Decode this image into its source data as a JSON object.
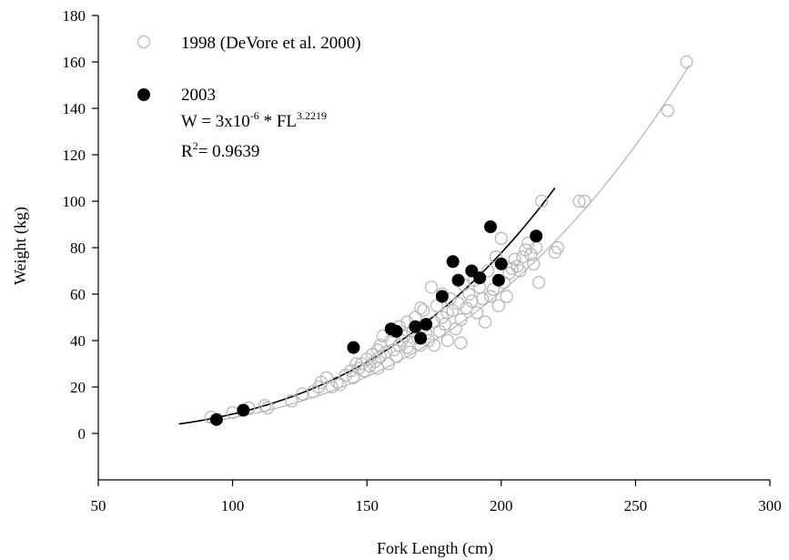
{
  "chart_data": {
    "type": "scatter",
    "xlabel": "Fork Length (cm)",
    "ylabel": "Weight (kg)",
    "xlim": [
      50,
      300
    ],
    "ylim": [
      -20,
      180
    ],
    "xticks": [
      50,
      100,
      150,
      200,
      250,
      300
    ],
    "yticks": [
      0,
      20,
      40,
      60,
      80,
      100,
      120,
      140,
      160,
      180
    ],
    "grid": false,
    "legend_position": "top-left",
    "series": [
      {
        "name": "1998 (DeVore et al. 2000)",
        "marker": "open-circle",
        "color": "#b8b8b8",
        "x": [
          92,
          100,
          106,
          112,
          113,
          122,
          126,
          130,
          132,
          133,
          135,
          137,
          139,
          140,
          142,
          144,
          145,
          146,
          147,
          148,
          149,
          150,
          151,
          152,
          153,
          154,
          154,
          155,
          155,
          156,
          157,
          158,
          159,
          160,
          160,
          161,
          162,
          162,
          163,
          164,
          165,
          165,
          166,
          167,
          168,
          169,
          170,
          170,
          171,
          171,
          172,
          173,
          174,
          175,
          175,
          176,
          177,
          178,
          178,
          179,
          180,
          180,
          181,
          182,
          183,
          184,
          185,
          185,
          186,
          187,
          188,
          189,
          190,
          191,
          192,
          193,
          194,
          195,
          196,
          197,
          198,
          199,
          200,
          201,
          202,
          203,
          204,
          205,
          206,
          207,
          208,
          209,
          210,
          211,
          212,
          213,
          214,
          215,
          220,
          221,
          229,
          231,
          262,
          269
        ],
        "y": [
          7,
          9,
          11,
          12,
          11,
          14,
          17,
          18,
          20,
          22,
          24,
          20,
          22,
          21,
          25,
          27,
          24,
          30,
          28,
          30,
          27,
          32,
          29,
          34,
          31,
          36,
          28,
          38,
          33,
          42,
          35,
          30,
          40,
          36,
          44,
          33,
          46,
          38,
          40,
          42,
          48,
          37,
          35,
          44,
          50,
          41,
          54,
          38,
          46,
          53,
          43,
          40,
          63,
          48,
          38,
          55,
          44,
          50,
          60,
          47,
          52,
          40,
          58,
          53,
          45,
          56,
          49,
          39,
          64,
          54,
          60,
          57,
          66,
          52,
          63,
          58,
          48,
          70,
          59,
          62,
          76,
          55,
          84,
          65,
          59,
          69,
          71,
          75,
          72,
          70,
          76,
          79,
          82,
          77,
          73,
          80,
          65,
          100,
          78,
          80,
          100,
          100,
          139,
          160
        ]
      },
      {
        "name": "2003",
        "marker": "filled-circle",
        "color": "#000000",
        "x": [
          94,
          104,
          145,
          159,
          161,
          168,
          170,
          172,
          178,
          182,
          184,
          189,
          192,
          196,
          199,
          200,
          213
        ],
        "y": [
          6,
          10,
          37,
          45,
          44,
          46,
          41,
          47,
          59,
          74,
          66,
          70,
          67,
          89,
          66,
          73,
          85
        ]
      }
    ],
    "fit_lines": [
      {
        "series": "1998 (DeVore et al. 2000)",
        "color": "#b8b8b8",
        "a": 2.94e-06,
        "b": 3.18,
        "x_range": [
          90,
          270
        ]
      },
      {
        "series": "2003",
        "color": "#000000",
        "a": 3e-06,
        "b": 3.2219,
        "x_range": [
          80,
          220
        ]
      }
    ],
    "annotations": {
      "equation_prefix": "W = 3x10",
      "equation_exp1": "-6",
      "equation_mid": " * FL",
      "equation_exp2": "3.2219",
      "r2_prefix": "R",
      "r2_exp": "2",
      "r2_value": "= 0.9639"
    }
  }
}
